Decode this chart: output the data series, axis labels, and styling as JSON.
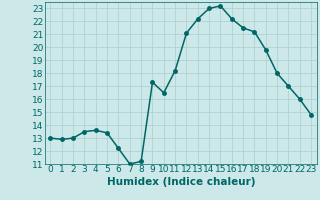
{
  "x": [
    0,
    1,
    2,
    3,
    4,
    5,
    6,
    7,
    8,
    9,
    10,
    11,
    12,
    13,
    14,
    15,
    16,
    17,
    18,
    19,
    20,
    21,
    22,
    23
  ],
  "y": [
    13.0,
    12.9,
    13.0,
    13.5,
    13.6,
    13.4,
    12.2,
    11.0,
    11.2,
    17.3,
    16.5,
    18.2,
    21.1,
    22.2,
    23.0,
    23.2,
    22.2,
    21.5,
    21.2,
    19.8,
    18.0,
    17.0,
    16.0,
    14.8
  ],
  "line_color": "#006666",
  "marker": "o",
  "markersize": 2.5,
  "linewidth": 1.1,
  "xlabel": "Humidex (Indice chaleur)",
  "bg_color": "#cce8e8",
  "grid_color": "#aacece",
  "label_color": "#006666",
  "xlim": [
    -0.5,
    23.5
  ],
  "ylim": [
    11,
    23.5
  ],
  "yticks": [
    11,
    12,
    13,
    14,
    15,
    16,
    17,
    18,
    19,
    20,
    21,
    22,
    23
  ],
  "xticks": [
    0,
    1,
    2,
    3,
    4,
    5,
    6,
    7,
    8,
    9,
    10,
    11,
    12,
    13,
    14,
    15,
    16,
    17,
    18,
    19,
    20,
    21,
    22,
    23
  ],
  "fontsize": 6.5
}
